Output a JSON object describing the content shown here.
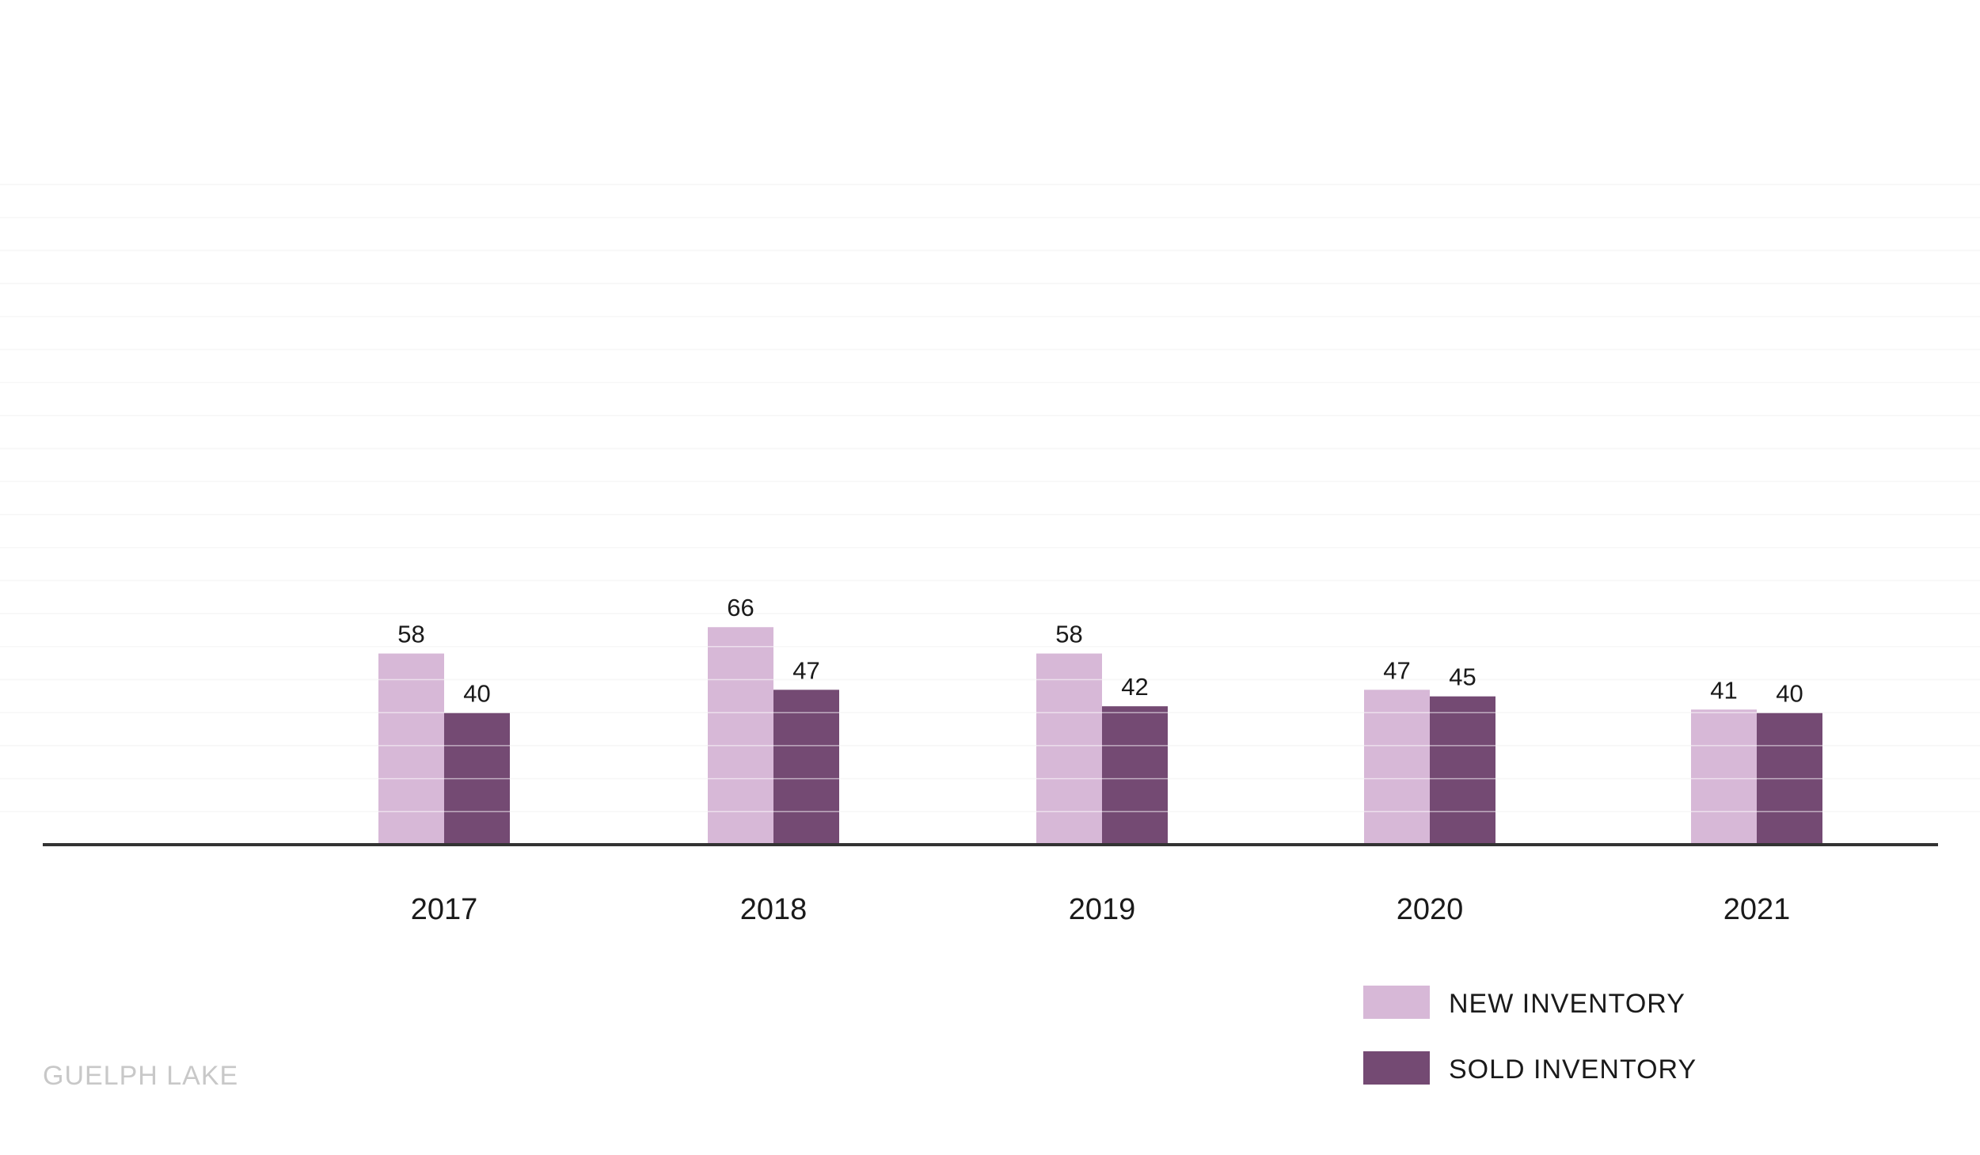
{
  "chart_data": {
    "type": "bar",
    "categories": [
      "2017",
      "2018",
      "2019",
      "2020",
      "2021"
    ],
    "series": [
      {
        "name": "NEW INVENTORY",
        "values": [
          58,
          66,
          58,
          47,
          41
        ],
        "color": "#d7b8d7"
      },
      {
        "name": "SOLD INVENTORY",
        "values": [
          40,
          47,
          42,
          45,
          40
        ],
        "color": "#744a73"
      }
    ],
    "title": "",
    "xlabel": "",
    "ylabel": "",
    "ylim": [
      0,
      200
    ],
    "grid": true,
    "legend": "bottom-right"
  },
  "footer": {
    "label": "GUELPH LAKE"
  },
  "colors": {
    "axis": "#333333",
    "grid": "#eeeeee",
    "footer": "#c8c8c8"
  }
}
